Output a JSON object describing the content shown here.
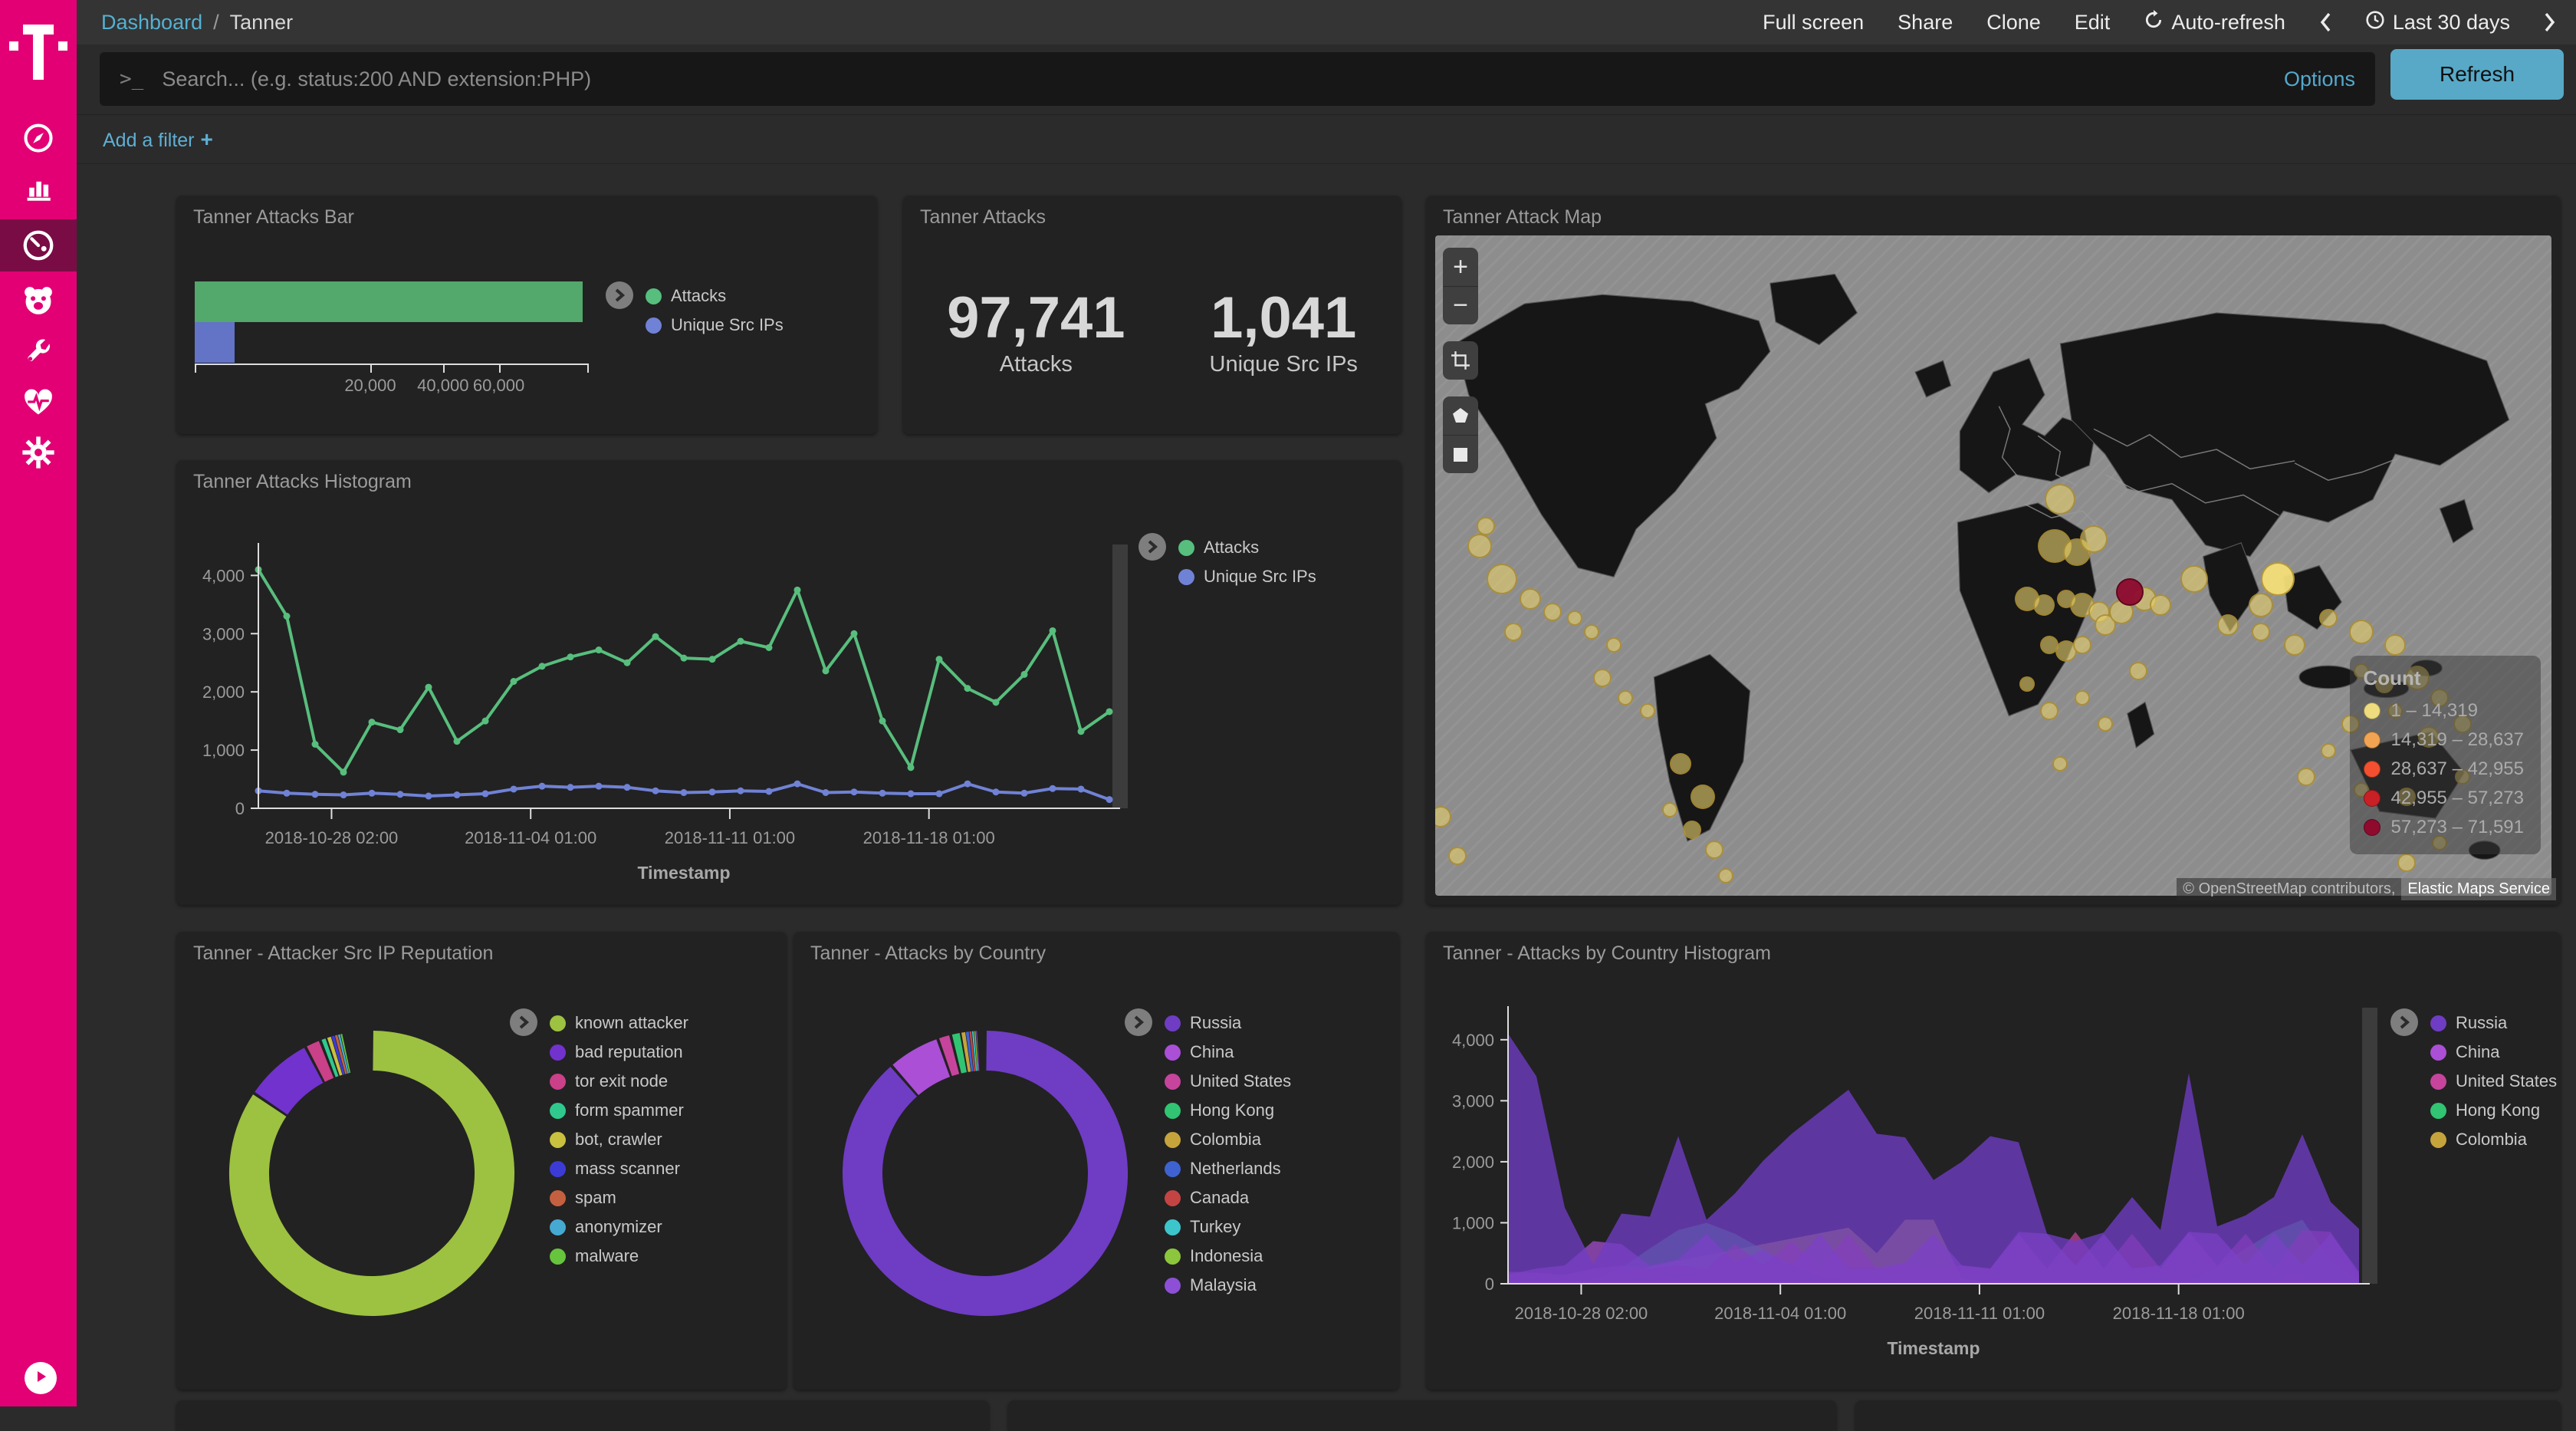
{
  "topbar": {
    "breadcrumb": {
      "root": "Dashboard",
      "separator": "/",
      "current": "Tanner"
    },
    "menu": [
      "Full screen",
      "Share",
      "Clone",
      "Edit"
    ],
    "auto_refresh_label": "Auto-refresh",
    "time_range_label": "Last 30 days"
  },
  "search": {
    "placeholder": "Search... (e.g. status:200 AND extension:PHP)",
    "options_label": "Options",
    "refresh_label": "Refresh"
  },
  "filter_bar": {
    "add_filter_label": "Add a filter",
    "plus": "+"
  },
  "sidebar": {
    "brand_color": "#e20074",
    "items": [
      "compass",
      "bar-chart",
      "dashboard",
      "bear",
      "wrench",
      "heartbeat",
      "gear"
    ],
    "active_item": "dashboard"
  },
  "panels": {
    "attacks_bar": {
      "title": "Tanner Attacks Bar"
    },
    "attacks_metric": {
      "title": "Tanner Attacks"
    },
    "attack_map": {
      "title": "Tanner Attack Map"
    },
    "attacks_histogram": {
      "title": "Tanner Attacks Histogram"
    },
    "reputation_donut": {
      "title": "Tanner - Attacker Src IP Reputation"
    },
    "country_donut": {
      "title": "Tanner - Attacks by Country"
    },
    "country_histogram": {
      "title": "Tanner - Attacks by Country Histogram"
    }
  },
  "metric": {
    "attacks_value": "97,741",
    "attacks_label": "Attacks",
    "ips_value": "1,041",
    "ips_label": "Unique Src IPs"
  },
  "chart_data": [
    {
      "id": "attacks-bar",
      "type": "bar",
      "orientation": "horizontal",
      "scale": "square-root",
      "categories": [
        "Attacks",
        "Unique Src IPs"
      ],
      "values": [
        97741,
        1041
      ],
      "colors": [
        "#53a86b",
        "#6373c6"
      ],
      "axis_max": 100000,
      "ticks": [
        {
          "v": 20000,
          "label": "20,000"
        },
        {
          "v": 40000,
          "label": "40,000"
        },
        {
          "v": 60000,
          "label": "60,000"
        }
      ],
      "legend": [
        {
          "label": "Attacks",
          "color": "#57be7e"
        },
        {
          "label": "Unique Src IPs",
          "color": "#7082d6"
        }
      ]
    },
    {
      "id": "attacks-histogram",
      "type": "line",
      "xlabel": "Timestamp",
      "ylim": [
        0,
        4400
      ],
      "yticks": [
        {
          "v": 0,
          "label": "0"
        },
        {
          "v": 1000,
          "label": "1,000"
        },
        {
          "v": 2000,
          "label": "2,000"
        },
        {
          "v": 3000,
          "label": "3,000"
        },
        {
          "v": 4000,
          "label": "4,000"
        }
      ],
      "xticks": [
        {
          "f": 0.086,
          "label": "2018-10-28 02:00"
        },
        {
          "f": 0.32,
          "label": "2018-11-04 01:00"
        },
        {
          "f": 0.554,
          "label": "2018-11-11 01:00"
        },
        {
          "f": 0.788,
          "label": "2018-11-18 01:00"
        }
      ],
      "series": [
        {
          "name": "Attacks",
          "color": "#58be7d",
          "values": [
            4100,
            3300,
            1100,
            620,
            1480,
            1350,
            2080,
            1150,
            1500,
            2180,
            2440,
            2600,
            2720,
            2500,
            2950,
            2580,
            2560,
            2870,
            2760,
            3750,
            2360,
            3000,
            1500,
            700,
            2560,
            2060,
            1820,
            2300,
            3050,
            1320,
            1660
          ]
        },
        {
          "name": "Unique Src IPs",
          "color": "#7082d6",
          "values": [
            300,
            260,
            240,
            230,
            260,
            240,
            210,
            230,
            250,
            330,
            380,
            360,
            380,
            360,
            300,
            270,
            280,
            300,
            290,
            420,
            270,
            280,
            260,
            250,
            250,
            420,
            280,
            260,
            340,
            330,
            150
          ]
        }
      ],
      "legend": [
        {
          "label": "Attacks",
          "color": "#57be7e"
        },
        {
          "label": "Unique Src IPs",
          "color": "#7082d6"
        }
      ]
    },
    {
      "id": "reputation-donut",
      "type": "pie",
      "shape": "donut",
      "slices": [
        {
          "label": "known attacker",
          "color": "#9dc141",
          "pct": 84.5
        },
        {
          "label": "bad reputation",
          "color": "#7232ce",
          "pct": 7.8
        },
        {
          "label": "tor exit node",
          "color": "#ca4089",
          "pct": 1.8
        },
        {
          "label": "form spammer",
          "color": "#2fc98e",
          "pct": 0.8
        },
        {
          "label": "bot, crawler",
          "color": "#c9c03f",
          "pct": 0.5
        },
        {
          "label": "mass scanner",
          "color": "#3d3bd6",
          "pct": 0.4
        },
        {
          "label": "spam",
          "color": "#c4603f",
          "pct": 0.35
        },
        {
          "label": "anonymizer",
          "color": "#46a9d2",
          "pct": 0.3
        },
        {
          "label": "malware",
          "color": "#66c43d",
          "pct": 0.25
        }
      ]
    },
    {
      "id": "country-donut",
      "type": "pie",
      "shape": "donut",
      "slices": [
        {
          "label": "Russia",
          "color": "#6f3cc4",
          "pct": 88.6
        },
        {
          "label": "China",
          "color": "#aa4fd6",
          "pct": 6.0
        },
        {
          "label": "United States",
          "color": "#c6449c",
          "pct": 1.5
        },
        {
          "label": "Hong Kong",
          "color": "#31c473",
          "pct": 1.2
        },
        {
          "label": "Colombia",
          "color": "#c6a43c",
          "pct": 0.5
        },
        {
          "label": "Netherlands",
          "color": "#3e62d1",
          "pct": 0.4
        },
        {
          "label": "Canada",
          "color": "#c44444",
          "pct": 0.3
        },
        {
          "label": "Turkey",
          "color": "#3cc6cc",
          "pct": 0.25
        },
        {
          "label": "Indonesia",
          "color": "#8cc63c",
          "pct": 0.2
        },
        {
          "label": "Malaysia",
          "color": "#8c4fd6",
          "pct": 0.15
        }
      ]
    },
    {
      "id": "country-histogram",
      "type": "area",
      "xlabel": "Timestamp",
      "ylim": [
        0,
        4400
      ],
      "yticks": [
        {
          "v": 0,
          "label": "0"
        },
        {
          "v": 1000,
          "label": "1,000"
        },
        {
          "v": 2000,
          "label": "2,000"
        },
        {
          "v": 3000,
          "label": "3,000"
        },
        {
          "v": 4000,
          "label": "4,000"
        }
      ],
      "xticks": [
        {
          "f": 0.086,
          "label": "2018-10-28 02:00"
        },
        {
          "f": 0.32,
          "label": "2018-11-04 01:00"
        },
        {
          "f": 0.554,
          "label": "2018-11-11 01:00"
        },
        {
          "f": 0.788,
          "label": "2018-11-18 01:00"
        }
      ],
      "series": [
        {
          "name": "Russia",
          "color": "#6f3cc4",
          "opacity": 0.78,
          "values": [
            4100,
            3400,
            1250,
            320,
            1150,
            1100,
            2420,
            1050,
            1480,
            2020,
            2460,
            2820,
            3180,
            2460,
            2400,
            1700,
            2000,
            2420,
            2320,
            820,
            700,
            840,
            1420,
            880,
            3450,
            940,
            1120,
            1420,
            2450,
            1340,
            900
          ]
        },
        {
          "name": "China",
          "color": "#aa4fd6",
          "opacity": 0.7,
          "values": [
            150,
            250,
            300,
            700,
            650,
            300,
            400,
            820,
            350,
            560,
            300,
            820,
            250,
            250,
            350,
            820,
            300,
            250,
            850,
            820,
            300,
            820,
            250,
            300,
            850,
            820,
            300,
            850,
            300,
            820,
            200
          ]
        },
        {
          "name": "United States",
          "color": "#c6449c",
          "opacity": 0.7,
          "values": [
            200,
            180,
            150,
            250,
            300,
            250,
            300,
            250,
            650,
            300,
            700,
            250,
            820,
            250,
            300,
            250,
            300,
            250,
            820,
            250,
            850,
            250,
            820,
            250,
            850,
            300,
            820,
            250,
            880,
            850,
            150
          ]
        },
        {
          "name": "Hong Kong",
          "color": "#31c473",
          "opacity": 0.6,
          "values": [
            30,
            30,
            40,
            60,
            260,
            580,
            880,
            1000,
            820,
            560,
            300,
            120,
            60,
            50,
            40,
            40,
            50,
            40,
            40,
            50,
            40,
            40,
            50,
            40,
            60,
            260,
            580,
            860,
            1050,
            380,
            60
          ]
        },
        {
          "name": "Colombia",
          "color": "#c6a43c",
          "opacity": 0.75,
          "values": [
            0,
            0,
            0,
            80,
            180,
            280,
            380,
            470,
            560,
            650,
            740,
            830,
            920,
            500,
            1050,
            1050,
            80,
            30,
            20,
            20,
            20,
            20,
            20,
            20,
            20,
            20,
            30,
            60,
            120,
            80,
            30
          ]
        }
      ],
      "legend": [
        {
          "label": "Russia",
          "color": "#6f3cc4"
        },
        {
          "label": "China",
          "color": "#aa4fd6"
        },
        {
          "label": "United States",
          "color": "#c6449c"
        },
        {
          "label": "Hong Kong",
          "color": "#31c473"
        },
        {
          "label": "Colombia",
          "color": "#c6a43c"
        }
      ]
    },
    {
      "id": "attack-map",
      "type": "map",
      "legend_title": "Count",
      "legend": [
        {
          "label": "1 – 14,319",
          "color": "#eedc7e"
        },
        {
          "label": "14,319 – 28,637",
          "color": "#f2a452"
        },
        {
          "label": "28,637 – 42,955",
          "color": "#f4502f"
        },
        {
          "label": "42,955 – 57,273",
          "color": "#c92025"
        },
        {
          "label": "57,273 – 71,591",
          "color": "#8e0b2e"
        }
      ],
      "attribution_prefix": "© OpenStreetMap contributors,",
      "attribution_service": "Elastic Maps Service",
      "bubbles": [
        {
          "x": 56,
          "y": 40,
          "r": 20,
          "lv": "low"
        },
        {
          "x": 55.5,
          "y": 47,
          "r": 22,
          "lv": "low"
        },
        {
          "x": 57.5,
          "y": 48,
          "r": 18,
          "lv": "low"
        },
        {
          "x": 59,
          "y": 46,
          "r": 18,
          "lv": "low"
        },
        {
          "x": 53,
          "y": 55,
          "r": 16,
          "lv": "low"
        },
        {
          "x": 54.5,
          "y": 56,
          "r": 14,
          "lv": "low"
        },
        {
          "x": 56.5,
          "y": 55,
          "r": 12,
          "lv": "low"
        },
        {
          "x": 58,
          "y": 56,
          "r": 16,
          "lv": "low"
        },
        {
          "x": 59.5,
          "y": 57,
          "r": 14,
          "lv": "low"
        },
        {
          "x": 55,
          "y": 62,
          "r": 12,
          "lv": "low"
        },
        {
          "x": 56.5,
          "y": 63,
          "r": 14,
          "lv": "low"
        },
        {
          "x": 58,
          "y": 62,
          "r": 12,
          "lv": "low"
        },
        {
          "x": 60,
          "y": 59,
          "r": 14,
          "lv": "low"
        },
        {
          "x": 61.5,
          "y": 57,
          "r": 16,
          "lv": "low"
        },
        {
          "x": 63.5,
          "y": 55,
          "r": 16,
          "lv": "low"
        },
        {
          "x": 65,
          "y": 56,
          "r": 14,
          "lv": "low"
        },
        {
          "x": 68,
          "y": 52,
          "r": 18,
          "lv": "low"
        },
        {
          "x": 71,
          "y": 59,
          "r": 14,
          "lv": "low"
        },
        {
          "x": 75.5,
          "y": 52,
          "r": 22,
          "lv": "bright"
        },
        {
          "x": 74,
          "y": 56,
          "r": 16,
          "lv": "low"
        },
        {
          "x": 62.2,
          "y": 54,
          "r": 18,
          "lv": "high"
        },
        {
          "x": 4,
          "y": 47,
          "r": 16,
          "lv": "low"
        },
        {
          "x": 6,
          "y": 52,
          "r": 20,
          "lv": "low"
        },
        {
          "x": 8.5,
          "y": 55,
          "r": 14,
          "lv": "low"
        },
        {
          "x": 10.5,
          "y": 57,
          "r": 12,
          "lv": "low"
        },
        {
          "x": 12.5,
          "y": 58,
          "r": 10,
          "lv": "low"
        },
        {
          "x": 7,
          "y": 60,
          "r": 12,
          "lv": "low"
        },
        {
          "x": 4.5,
          "y": 44,
          "r": 12,
          "lv": "low"
        },
        {
          "x": 14,
          "y": 60,
          "r": 10,
          "lv": "low"
        },
        {
          "x": 16,
          "y": 62,
          "r": 10,
          "lv": "low"
        },
        {
          "x": 15,
          "y": 67,
          "r": 12,
          "lv": "low"
        },
        {
          "x": 17,
          "y": 70,
          "r": 10,
          "lv": "low"
        },
        {
          "x": 19,
          "y": 72,
          "r": 10,
          "lv": "low"
        },
        {
          "x": 22,
          "y": 80,
          "r": 14,
          "lv": "low"
        },
        {
          "x": 24,
          "y": 85,
          "r": 16,
          "lv": "low"
        },
        {
          "x": 23,
          "y": 90,
          "r": 12,
          "lv": "low"
        },
        {
          "x": 21,
          "y": 87,
          "r": 10,
          "lv": "low"
        },
        {
          "x": 25,
          "y": 93,
          "r": 12,
          "lv": "low"
        },
        {
          "x": 26,
          "y": 97,
          "r": 10,
          "lv": "low"
        },
        {
          "x": 53,
          "y": 68,
          "r": 10,
          "lv": "low"
        },
        {
          "x": 55,
          "y": 72,
          "r": 12,
          "lv": "low"
        },
        {
          "x": 58,
          "y": 70,
          "r": 10,
          "lv": "low"
        },
        {
          "x": 60,
          "y": 74,
          "r": 10,
          "lv": "low"
        },
        {
          "x": 63,
          "y": 66,
          "r": 12,
          "lv": "low"
        },
        {
          "x": 56,
          "y": 80,
          "r": 10,
          "lv": "low"
        },
        {
          "x": 74,
          "y": 60,
          "r": 12,
          "lv": "low"
        },
        {
          "x": 77,
          "y": 62,
          "r": 14,
          "lv": "low"
        },
        {
          "x": 80,
          "y": 58,
          "r": 12,
          "lv": "low"
        },
        {
          "x": 83,
          "y": 60,
          "r": 16,
          "lv": "low"
        },
        {
          "x": 86,
          "y": 62,
          "r": 14,
          "lv": "low"
        },
        {
          "x": 83,
          "y": 66,
          "r": 10,
          "lv": "low"
        },
        {
          "x": 85,
          "y": 68,
          "r": 12,
          "lv": "low"
        },
        {
          "x": 88,
          "y": 67,
          "r": 16,
          "lv": "low"
        },
        {
          "x": 90,
          "y": 70,
          "r": 12,
          "lv": "low"
        },
        {
          "x": 86,
          "y": 72,
          "r": 10,
          "lv": "low"
        },
        {
          "x": 82,
          "y": 74,
          "r": 12,
          "lv": "low"
        },
        {
          "x": 89,
          "y": 76,
          "r": 14,
          "lv": "low"
        },
        {
          "x": 92,
          "y": 74,
          "r": 12,
          "lv": "low"
        },
        {
          "x": 80,
          "y": 78,
          "r": 10,
          "lv": "low"
        },
        {
          "x": 78,
          "y": 82,
          "r": 12,
          "lv": "low"
        },
        {
          "x": 83,
          "y": 84,
          "r": 10,
          "lv": "low"
        },
        {
          "x": 87,
          "y": 85,
          "r": 12,
          "lv": "low"
        },
        {
          "x": 92,
          "y": 82,
          "r": 10,
          "lv": "low"
        },
        {
          "x": 90,
          "y": 92,
          "r": 10,
          "lv": "low"
        },
        {
          "x": 87,
          "y": 95,
          "r": 12,
          "lv": "low"
        },
        {
          "x": 0.5,
          "y": 88,
          "r": 14,
          "lv": "low"
        },
        {
          "x": 2,
          "y": 94,
          "r": 12,
          "lv": "low"
        }
      ]
    }
  ]
}
